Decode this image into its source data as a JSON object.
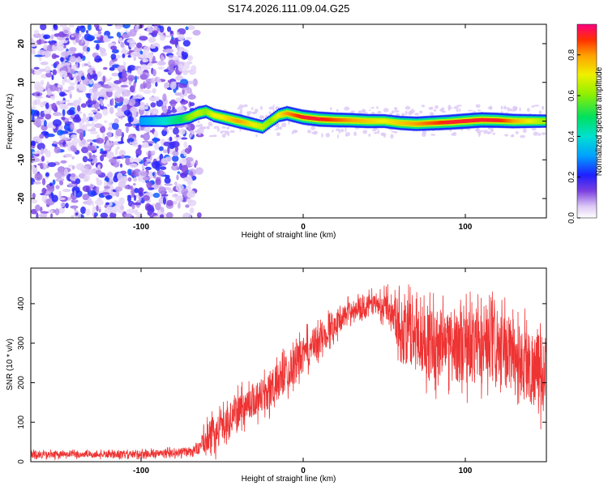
{
  "chart_data": [
    {
      "type": "heatmap",
      "title": "S174.2026.111.09.04.G25",
      "xlabel": "Height of straight line (km)",
      "ylabel": "Frequency (Hz)",
      "xlim": [
        -168,
        150
      ],
      "ylim": [
        -25,
        25
      ],
      "xticks": [
        -100,
        0,
        100
      ],
      "yticks": [
        -20,
        -10,
        0,
        10,
        20
      ],
      "colorbar": {
        "label": "Normalized spectral amplitude",
        "range": [
          0.0,
          0.95
        ],
        "ticks": [
          0.0,
          0.2,
          0.4,
          0.6,
          0.8
        ]
      },
      "ridge": {
        "x": [
          -100,
          -85,
          -75,
          -70,
          -65,
          -60,
          -55,
          -50,
          -45,
          -40,
          -35,
          -30,
          -25,
          -20,
          -15,
          -10,
          -5,
          0,
          10,
          20,
          30,
          40,
          50,
          60,
          70,
          80,
          90,
          100,
          110,
          120,
          130,
          140,
          150
        ],
        "freq": [
          0,
          0,
          0.5,
          1,
          2,
          2.5,
          1.5,
          1,
          0.5,
          0,
          -0.5,
          -1,
          -1.5,
          0,
          1.5,
          2,
          1.5,
          1,
          0.5,
          0.3,
          0.2,
          0,
          0,
          -0.5,
          -0.7,
          -0.5,
          -0.3,
          0,
          0.3,
          0.2,
          0,
          0,
          0
        ],
        "amplitude": [
          0.3,
          0.4,
          0.5,
          0.6,
          0.65,
          0.6,
          0.7,
          0.7,
          0.75,
          0.8,
          0.75,
          0.7,
          0.65,
          0.6,
          0.7,
          0.8,
          0.85,
          0.9,
          0.9,
          0.85,
          0.8,
          0.75,
          0.7,
          0.75,
          0.8,
          0.85,
          0.9,
          0.95,
          0.95,
          0.9,
          0.8,
          0.7,
          0.6
        ]
      },
      "noise_region": [
        -168,
        -68
      ]
    },
    {
      "type": "line",
      "xlabel": "Height of straight line (km)",
      "ylabel": "SNR (10 * v/v)",
      "xlim": [
        -168,
        150
      ],
      "ylim": [
        0,
        490
      ],
      "xticks": [
        -100,
        0,
        100
      ],
      "yticks": [
        0,
        100,
        200,
        300,
        400
      ],
      "series": [
        {
          "name": "SNR",
          "color": "#ee3333",
          "envelope": {
            "x": [
              -168,
              -140,
              -110,
              -80,
              -65,
              -60,
              -55,
              -50,
              -40,
              -30,
              -20,
              -10,
              0,
              10,
              20,
              30,
              40,
              50,
              55,
              60,
              70,
              80,
              90,
              100,
              110,
              120,
              130,
              140,
              150
            ],
            "mean": [
              18,
              18,
              18,
              22,
              30,
              60,
              70,
              90,
              130,
              160,
              180,
              230,
              270,
              310,
              350,
              385,
              400,
              395,
              390,
              330,
              320,
              300,
              300,
              290,
              290,
              280,
              270,
              240,
              220
            ],
            "spread": [
              10,
              10,
              10,
              12,
              15,
              40,
              55,
              45,
              50,
              55,
              60,
              60,
              55,
              50,
              40,
              30,
              30,
              40,
              50,
              100,
              110,
              110,
              110,
              120,
              120,
              110,
              110,
              120,
              120
            ]
          }
        }
      ]
    }
  ]
}
